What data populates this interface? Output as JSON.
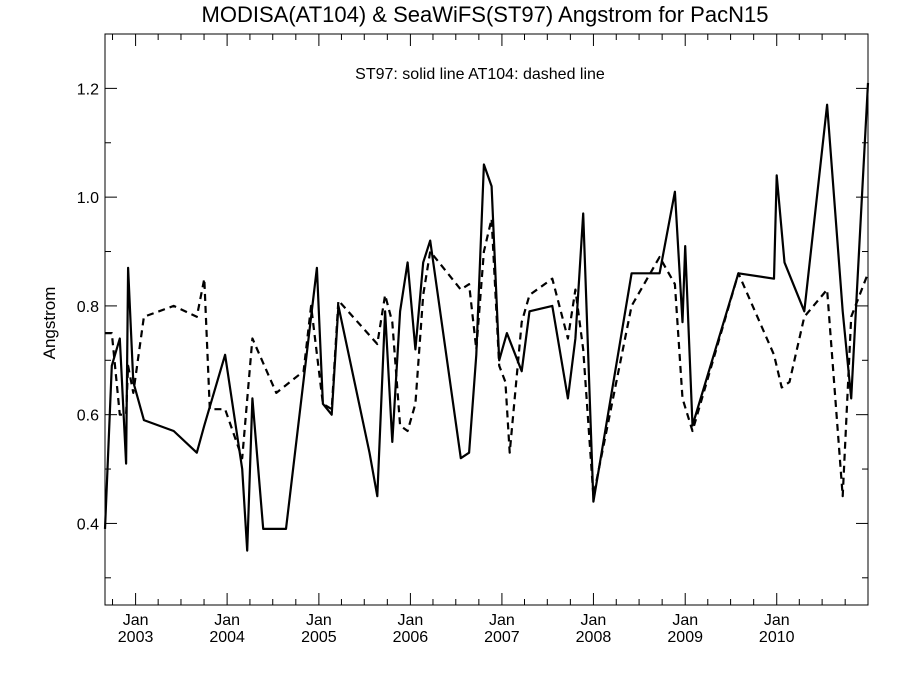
{
  "chart_data": {
    "type": "line",
    "title": "MODISA(AT104) & SeaWiFS(ST97)  Angstrom for PacN15",
    "annotation": "ST97: solid line   AT104: dashed line",
    "xlabel": "",
    "ylabel": "Angstrom",
    "xlim": [
      "2002-09-01",
      "2010-12-31"
    ],
    "ylim": [
      0.25,
      1.3
    ],
    "yticks": [
      0.4,
      0.6,
      0.8,
      1.0,
      1.2
    ],
    "ytick_labels": [
      "0.4",
      "0.6",
      "0.8",
      "1.0",
      "1.2"
    ],
    "xticks": [
      {
        "date": "2003-01-01",
        "month": "Jan",
        "year": "2003"
      },
      {
        "date": "2004-01-01",
        "month": "Jan",
        "year": "2004"
      },
      {
        "date": "2005-01-01",
        "month": "Jan",
        "year": "2005"
      },
      {
        "date": "2006-01-01",
        "month": "Jan",
        "year": "2006"
      },
      {
        "date": "2007-01-01",
        "month": "Jan",
        "year": "2007"
      },
      {
        "date": "2008-01-01",
        "month": "Jan",
        "year": "2008"
      },
      {
        "date": "2009-01-01",
        "month": "Jan",
        "year": "2009"
      },
      {
        "date": "2010-01-01",
        "month": "Jan",
        "year": "2010"
      }
    ],
    "grid": false,
    "series": [
      {
        "name": "ST97",
        "style": "solid",
        "color": "#000000",
        "points": [
          [
            "2002-09-01",
            0.39
          ],
          [
            "2002-09-28",
            0.69
          ],
          [
            "2002-10-30",
            0.74
          ],
          [
            "2002-11-24",
            0.51
          ],
          [
            "2002-12-02",
            0.87
          ],
          [
            "2002-12-23",
            0.66
          ],
          [
            "2003-02-03",
            0.59
          ],
          [
            "2003-06-02",
            0.57
          ],
          [
            "2003-09-02",
            0.53
          ],
          [
            "2003-10-02",
            0.58
          ],
          [
            "2003-12-24",
            0.71
          ],
          [
            "2004-03-01",
            0.5
          ],
          [
            "2004-03-21",
            0.35
          ],
          [
            "2004-04-11",
            0.63
          ],
          [
            "2004-05-24",
            0.39
          ],
          [
            "2004-08-23",
            0.39
          ],
          [
            "2004-12-24",
            0.87
          ],
          [
            "2005-01-17",
            0.62
          ],
          [
            "2005-02-21",
            0.6
          ],
          [
            "2005-03-20",
            0.8
          ],
          [
            "2005-07-22",
            0.53
          ],
          [
            "2005-08-22",
            0.45
          ],
          [
            "2005-09-22",
            0.79
          ],
          [
            "2005-10-21",
            0.55
          ],
          [
            "2005-11-21",
            0.79
          ],
          [
            "2005-12-21",
            0.88
          ],
          [
            "2006-01-21",
            0.72
          ],
          [
            "2006-02-21",
            0.88
          ],
          [
            "2006-03-21",
            0.92
          ],
          [
            "2006-07-21",
            0.52
          ],
          [
            "2006-08-23",
            0.53
          ],
          [
            "2006-09-21",
            0.71
          ],
          [
            "2006-10-21",
            1.06
          ],
          [
            "2006-11-21",
            1.02
          ],
          [
            "2006-12-21",
            0.7
          ],
          [
            "2007-01-21",
            0.75
          ],
          [
            "2007-03-21",
            0.68
          ],
          [
            "2007-04-21",
            0.79
          ],
          [
            "2007-07-21",
            0.8
          ],
          [
            "2007-09-21",
            0.63
          ],
          [
            "2007-10-21",
            0.74
          ],
          [
            "2007-11-21",
            0.97
          ],
          [
            "2008-01-01",
            0.44
          ],
          [
            "2008-06-01",
            0.86
          ],
          [
            "2008-09-21",
            0.86
          ],
          [
            "2008-11-21",
            1.01
          ],
          [
            "2008-12-21",
            0.77
          ],
          [
            "2009-01-01",
            0.91
          ],
          [
            "2009-01-30",
            0.58
          ],
          [
            "2009-08-01",
            0.86
          ],
          [
            "2009-12-21",
            0.85
          ],
          [
            "2010-01-01",
            1.04
          ],
          [
            "2010-02-01",
            0.88
          ],
          [
            "2010-04-21",
            0.79
          ],
          [
            "2010-07-21",
            1.17
          ],
          [
            "2010-09-21",
            0.79
          ],
          [
            "2010-10-25",
            0.63
          ],
          [
            "2010-12-31",
            1.21
          ]
        ]
      },
      {
        "name": "AT104",
        "style": "dashed",
        "color": "#000000",
        "points": [
          [
            "2002-09-01",
            0.75
          ],
          [
            "2002-09-28",
            0.75
          ],
          [
            "2002-10-30",
            0.6
          ],
          [
            "2002-11-24",
            0.6
          ],
          [
            "2002-12-02",
            0.69
          ],
          [
            "2002-12-23",
            0.64
          ],
          [
            "2003-02-03",
            0.78
          ],
          [
            "2003-06-02",
            0.8
          ],
          [
            "2003-09-02",
            0.78
          ],
          [
            "2003-10-02",
            0.85
          ],
          [
            "2003-10-24",
            0.61
          ],
          [
            "2003-12-24",
            0.61
          ],
          [
            "2004-03-01",
            0.52
          ],
          [
            "2004-04-11",
            0.74
          ],
          [
            "2004-07-15",
            0.64
          ],
          [
            "2004-11-01",
            0.68
          ],
          [
            "2004-12-01",
            0.8
          ],
          [
            "2005-01-17",
            0.62
          ],
          [
            "2005-02-21",
            0.61
          ],
          [
            "2005-03-20",
            0.81
          ],
          [
            "2005-08-22",
            0.73
          ],
          [
            "2005-09-22",
            0.82
          ],
          [
            "2005-10-21",
            0.77
          ],
          [
            "2005-11-21",
            0.58
          ],
          [
            "2005-12-21",
            0.57
          ],
          [
            "2006-01-21",
            0.62
          ],
          [
            "2006-02-21",
            0.82
          ],
          [
            "2006-03-21",
            0.9
          ],
          [
            "2006-07-21",
            0.83
          ],
          [
            "2006-08-23",
            0.84
          ],
          [
            "2006-09-21",
            0.72
          ],
          [
            "2006-10-21",
            0.9
          ],
          [
            "2006-11-21",
            0.96
          ],
          [
            "2006-12-21",
            0.69
          ],
          [
            "2007-01-15",
            0.66
          ],
          [
            "2007-02-01",
            0.53
          ],
          [
            "2007-03-21",
            0.77
          ],
          [
            "2007-04-21",
            0.82
          ],
          [
            "2007-07-21",
            0.85
          ],
          [
            "2007-09-21",
            0.74
          ],
          [
            "2007-10-21",
            0.83
          ],
          [
            "2007-11-21",
            0.72
          ],
          [
            "2008-01-01",
            0.45
          ],
          [
            "2008-06-01",
            0.8
          ],
          [
            "2008-09-21",
            0.89
          ],
          [
            "2008-11-21",
            0.84
          ],
          [
            "2008-12-21",
            0.63
          ],
          [
            "2009-01-30",
            0.57
          ],
          [
            "2009-08-01",
            0.86
          ],
          [
            "2009-12-21",
            0.71
          ],
          [
            "2010-01-21",
            0.65
          ],
          [
            "2010-02-21",
            0.66
          ],
          [
            "2010-04-21",
            0.78
          ],
          [
            "2010-07-21",
            0.83
          ],
          [
            "2010-09-21",
            0.45
          ],
          [
            "2010-10-25",
            0.78
          ],
          [
            "2010-12-31",
            0.86
          ]
        ]
      }
    ]
  }
}
